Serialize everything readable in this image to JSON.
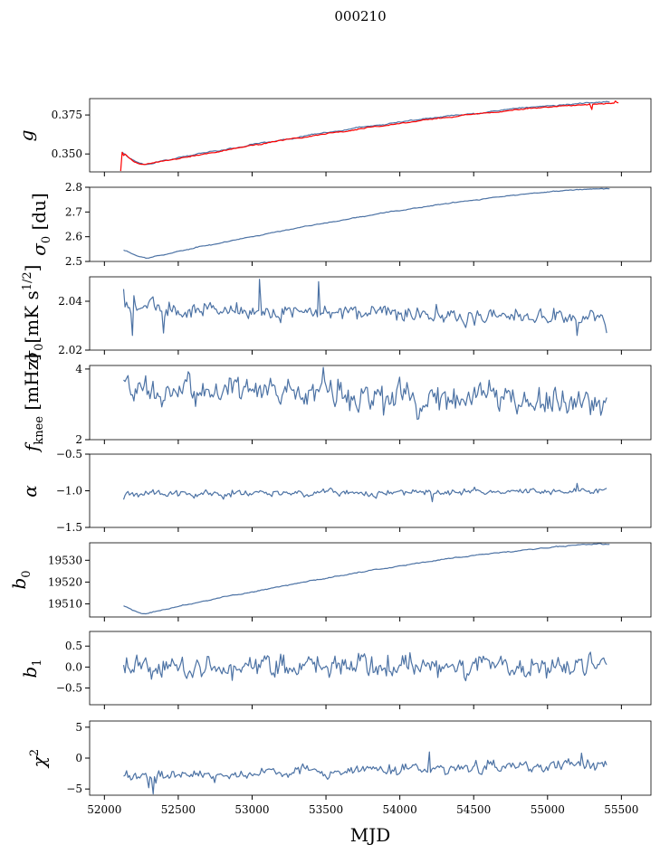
{
  "suptitle": "000210",
  "colors": {
    "main": "#4c72a4",
    "overlay": "#ff0000"
  },
  "chart_data": {
    "type": "line",
    "x_range": [
      51900,
      55700
    ],
    "xlabel": "MJD",
    "xticks": [
      52000,
      52500,
      53000,
      53500,
      54000,
      54500,
      55000,
      55500
    ],
    "xtick_labels": [
      "52000",
      "52500",
      "53000",
      "53500",
      "54000",
      "54500",
      "55000",
      "55500"
    ],
    "panels": [
      {
        "id": "g",
        "ylabel": "g",
        "ylim": [
          0.3385,
          0.3855
        ],
        "yticks": [
          0.35,
          0.375
        ],
        "ytick_labels": [
          "0.350",
          "0.375"
        ],
        "series": [
          {
            "name": "g",
            "shape": "recover",
            "start": [
              52120,
              0.351
            ],
            "low": [
              52280,
              0.3435
            ],
            "end": [
              55420,
              0.383
            ],
            "noise": 0.0005,
            "n": 330
          },
          {
            "name": "g-red",
            "color": "overlay",
            "shape": "recover",
            "start": [
              52110,
              0.352
            ],
            "low": [
              52280,
              0.3432
            ],
            "end": [
              55480,
              0.3825
            ],
            "noise": 0.0004,
            "n": 330,
            "spikes": [
              [
                52110,
                0.339
              ],
              [
                52130,
                0.349
              ],
              [
                55300,
                0.3785
              ],
              [
                55460,
                0.384
              ]
            ]
          }
        ]
      },
      {
        "id": "sigma0-du",
        "ylabel": "σ0 [du]",
        "ylim": [
          2.5,
          2.8
        ],
        "yticks": [
          2.5,
          2.6,
          2.7,
          2.8
        ],
        "ytick_labels": [
          "2.5",
          "2.6",
          "2.7",
          "2.8"
        ],
        "series": [
          {
            "name": "sigma0_du",
            "shape": "recover",
            "start": [
              52130,
              2.545
            ],
            "low": [
              52300,
              2.515
            ],
            "end": [
              55420,
              2.795
            ],
            "noise": 0.002,
            "n": 330
          }
        ]
      },
      {
        "id": "sigma0-mk",
        "ylabel": "σ0[mK s^1/2]",
        "ylim": [
          2.02,
          2.05
        ],
        "yticks": [
          2.02,
          2.04
        ],
        "ytick_labels": [
          "2.02",
          "2.04"
        ],
        "series": [
          {
            "name": "sigma0_mK",
            "shape": "flat",
            "start": [
              52130,
              2.037
            ],
            "end": [
              55400,
              2.033
            ],
            "noise": 0.0035,
            "n": 330,
            "spikes": [
              [
                52130,
                2.045
              ],
              [
                52190,
                2.026
              ],
              [
                52400,
                2.027
              ],
              [
                53050,
                2.049
              ],
              [
                53450,
                2.048
              ],
              [
                55200,
                2.026
              ],
              [
                55400,
                2.027
              ]
            ]
          }
        ]
      },
      {
        "id": "fknee",
        "ylabel": "fknee [mHz]",
        "ylim": [
          2,
          4.1
        ],
        "yticks": [
          2,
          4
        ],
        "ytick_labels": [
          "2",
          "4"
        ],
        "series": [
          {
            "name": "fknee",
            "shape": "flat",
            "start": [
              52130,
              3.4
            ],
            "end": [
              55400,
              3.1
            ],
            "noise": 0.42,
            "n": 330,
            "clip": [
              2.45,
              4.1
            ]
          }
        ]
      },
      {
        "id": "alpha",
        "ylabel": "α",
        "ylim": [
          -1.5,
          -0.5
        ],
        "yticks": [
          -1.5,
          -1.0,
          -0.5
        ],
        "ytick_labels": [
          "−1.5",
          "−1.0",
          "−0.5"
        ],
        "series": [
          {
            "name": "alpha",
            "shape": "flat",
            "start": [
              52130,
              -1.04
            ],
            "end": [
              55400,
              -1.0
            ],
            "noise": 0.045,
            "n": 330,
            "spikes": [
              [
                52130,
                -1.12
              ],
              [
                55200,
                -0.9
              ],
              [
                54220,
                -1.15
              ]
            ]
          }
        ]
      },
      {
        "id": "b0",
        "ylabel": "b0",
        "ylim": [
          19504,
          19538
        ],
        "yticks": [
          19510,
          19520,
          19530
        ],
        "ytick_labels": [
          "19510",
          "19520",
          "19530"
        ],
        "series": [
          {
            "name": "b0",
            "shape": "recover",
            "start": [
              52130,
              19509
            ],
            "low": [
              52280,
              19505.5
            ],
            "end": [
              55420,
              19537.5
            ],
            "noise": 0.25,
            "n": 330
          }
        ]
      },
      {
        "id": "b1",
        "ylabel": "b1",
        "ylim": [
          -0.9,
          0.85
        ],
        "yticks": [
          -0.5,
          0.0,
          0.5
        ],
        "ytick_labels": [
          "−0.5",
          "0.0",
          "0.5"
        ],
        "series": [
          {
            "name": "b1",
            "shape": "flat",
            "start": [
              52130,
              0.0
            ],
            "end": [
              55400,
              0.0
            ],
            "noise": 0.28,
            "n": 330,
            "clip": [
              -0.8,
              0.75
            ]
          }
        ]
      },
      {
        "id": "chi2",
        "ylabel": "χ2",
        "ylim": [
          -6,
          6
        ],
        "yticks": [
          -5,
          0,
          5
        ],
        "ytick_labels": [
          "−5",
          "0",
          "5"
        ],
        "series": [
          {
            "name": "chi2",
            "shape": "ramp",
            "start": [
              52130,
              -3.0
            ],
            "end": [
              55400,
              -1.0
            ],
            "noise": 0.9,
            "n": 330,
            "spikes": [
              [
                52330,
                -5.8
              ],
              [
                52300,
                -4.8
              ],
              [
                54200,
                1.0
              ],
              [
                55230,
                0.8
              ]
            ]
          }
        ]
      }
    ]
  }
}
